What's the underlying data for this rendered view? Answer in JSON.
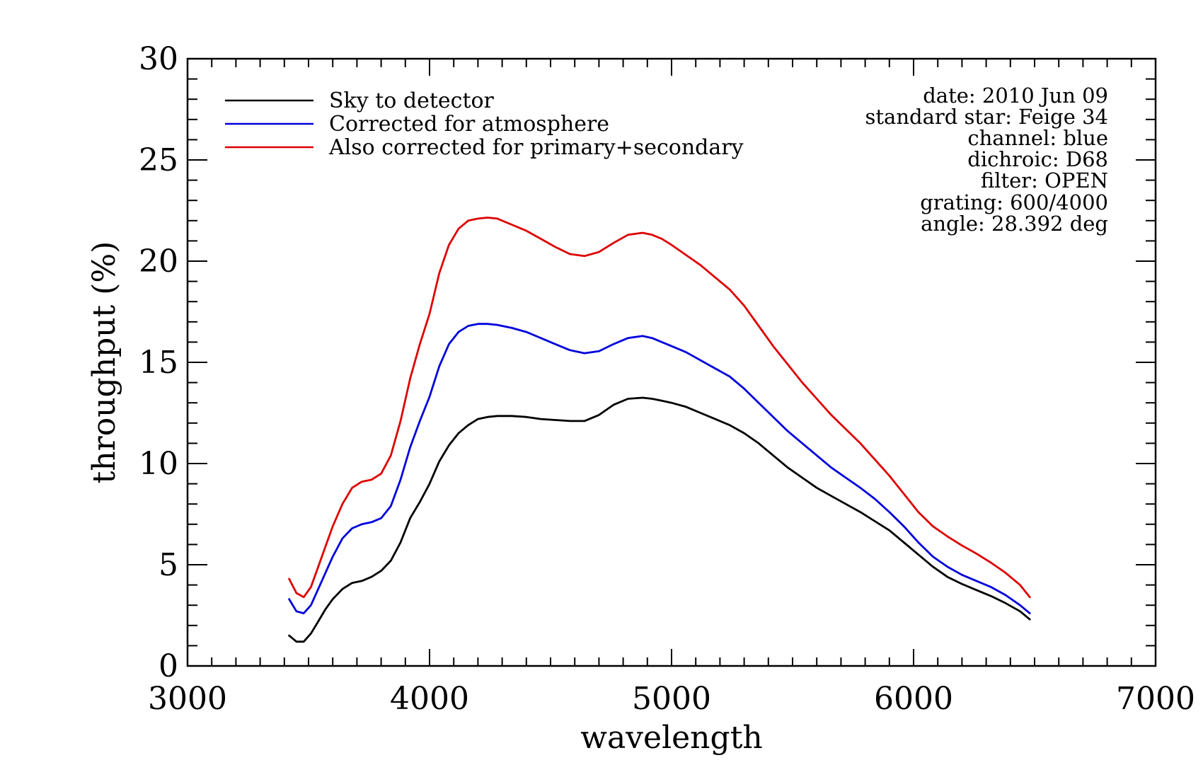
{
  "chart_data": {
    "type": "line",
    "xlabel": "wavelength",
    "ylabel": "throughput (%)",
    "xlim": [
      3000,
      7000
    ],
    "ylim": [
      0,
      30
    ],
    "x_ticks": [
      3000,
      4000,
      5000,
      6000,
      7000
    ],
    "y_ticks": [
      0,
      5,
      10,
      15,
      20,
      25,
      30
    ],
    "x_tick_labels": [
      "3000",
      "4000",
      "5000",
      "6000",
      "7000"
    ],
    "y_tick_labels": [
      "0",
      "5",
      "10",
      "15",
      "20",
      "25",
      "30"
    ],
    "x_minor_step": 100,
    "y_minor_step": 1,
    "legend_position": "top-left",
    "info_lines": [
      "date: 2010 Jun 09",
      "standard star: Feige 34",
      "channel: blue",
      "dichroic: D68",
      "filter: OPEN",
      "grating: 600/4000",
      "angle: 28.392 deg"
    ],
    "series": [
      {
        "name": "Sky to detector",
        "color": "#000000",
        "x": [
          3420,
          3450,
          3480,
          3510,
          3540,
          3570,
          3600,
          3640,
          3680,
          3720,
          3760,
          3800,
          3840,
          3880,
          3920,
          3960,
          4000,
          4040,
          4080,
          4120,
          4160,
          4200,
          4240,
          4280,
          4340,
          4400,
          4460,
          4520,
          4580,
          4640,
          4700,
          4760,
          4820,
          4880,
          4920,
          4960,
          5000,
          5060,
          5120,
          5180,
          5240,
          5300,
          5360,
          5420,
          5480,
          5540,
          5600,
          5660,
          5720,
          5780,
          5840,
          5900,
          5960,
          6020,
          6080,
          6140,
          6200,
          6260,
          6320,
          6380,
          6440,
          6480
        ],
        "y": [
          1.5,
          1.2,
          1.2,
          1.6,
          2.2,
          2.8,
          3.3,
          3.8,
          4.1,
          4.2,
          4.4,
          4.7,
          5.2,
          6.1,
          7.3,
          8.1,
          9.0,
          10.1,
          10.9,
          11.5,
          11.9,
          12.2,
          12.3,
          12.35,
          12.35,
          12.3,
          12.2,
          12.15,
          12.1,
          12.1,
          12.4,
          12.9,
          13.2,
          13.25,
          13.2,
          13.1,
          13.0,
          12.8,
          12.5,
          12.2,
          11.9,
          11.5,
          11.0,
          10.4,
          9.8,
          9.3,
          8.8,
          8.4,
          8.0,
          7.6,
          7.15,
          6.7,
          6.1,
          5.5,
          4.9,
          4.4,
          4.05,
          3.75,
          3.45,
          3.1,
          2.7,
          2.3
        ]
      },
      {
        "name": "Corrected for atmosphere",
        "color": "#0000dd",
        "x": [
          3420,
          3450,
          3480,
          3510,
          3540,
          3570,
          3600,
          3640,
          3680,
          3720,
          3760,
          3800,
          3840,
          3880,
          3920,
          3960,
          4000,
          4040,
          4080,
          4120,
          4160,
          4200,
          4240,
          4280,
          4340,
          4400,
          4460,
          4520,
          4580,
          4640,
          4700,
          4760,
          4820,
          4880,
          4920,
          4960,
          5000,
          5060,
          5120,
          5180,
          5240,
          5300,
          5360,
          5420,
          5480,
          5540,
          5600,
          5660,
          5720,
          5780,
          5840,
          5900,
          5960,
          6020,
          6080,
          6140,
          6200,
          6260,
          6320,
          6380,
          6440,
          6480
        ],
        "y": [
          3.3,
          2.7,
          2.6,
          3.0,
          3.8,
          4.6,
          5.4,
          6.3,
          6.8,
          7.0,
          7.1,
          7.3,
          7.9,
          9.2,
          10.8,
          12.1,
          13.3,
          14.8,
          15.9,
          16.5,
          16.8,
          16.9,
          16.9,
          16.85,
          16.7,
          16.5,
          16.2,
          15.9,
          15.6,
          15.45,
          15.55,
          15.9,
          16.2,
          16.3,
          16.2,
          16.0,
          15.8,
          15.5,
          15.1,
          14.7,
          14.3,
          13.7,
          13.0,
          12.3,
          11.6,
          11.0,
          10.4,
          9.8,
          9.3,
          8.8,
          8.25,
          7.6,
          6.9,
          6.1,
          5.4,
          4.9,
          4.5,
          4.2,
          3.9,
          3.5,
          3.0,
          2.6
        ]
      },
      {
        "name": "Also corrected for primary+secondary",
        "color": "#dd0000",
        "x": [
          3420,
          3450,
          3480,
          3510,
          3540,
          3570,
          3600,
          3640,
          3680,
          3720,
          3760,
          3800,
          3840,
          3880,
          3920,
          3960,
          4000,
          4040,
          4080,
          4120,
          4160,
          4200,
          4240,
          4280,
          4340,
          4400,
          4460,
          4520,
          4580,
          4640,
          4700,
          4760,
          4820,
          4880,
          4920,
          4960,
          5000,
          5060,
          5120,
          5180,
          5240,
          5300,
          5360,
          5420,
          5480,
          5540,
          5600,
          5660,
          5720,
          5780,
          5840,
          5900,
          5960,
          6020,
          6080,
          6140,
          6200,
          6260,
          6320,
          6380,
          6440,
          6480
        ],
        "y": [
          4.3,
          3.6,
          3.4,
          3.9,
          4.9,
          5.9,
          6.9,
          8.0,
          8.8,
          9.1,
          9.2,
          9.5,
          10.4,
          12.1,
          14.2,
          15.9,
          17.4,
          19.4,
          20.8,
          21.6,
          22.0,
          22.1,
          22.15,
          22.1,
          21.8,
          21.5,
          21.1,
          20.7,
          20.35,
          20.25,
          20.45,
          20.9,
          21.3,
          21.4,
          21.3,
          21.1,
          20.8,
          20.3,
          19.8,
          19.2,
          18.6,
          17.8,
          16.8,
          15.8,
          14.9,
          14.0,
          13.2,
          12.4,
          11.7,
          11.0,
          10.2,
          9.4,
          8.5,
          7.6,
          6.9,
          6.4,
          5.95,
          5.55,
          5.1,
          4.6,
          4.0,
          3.4
        ]
      }
    ]
  }
}
